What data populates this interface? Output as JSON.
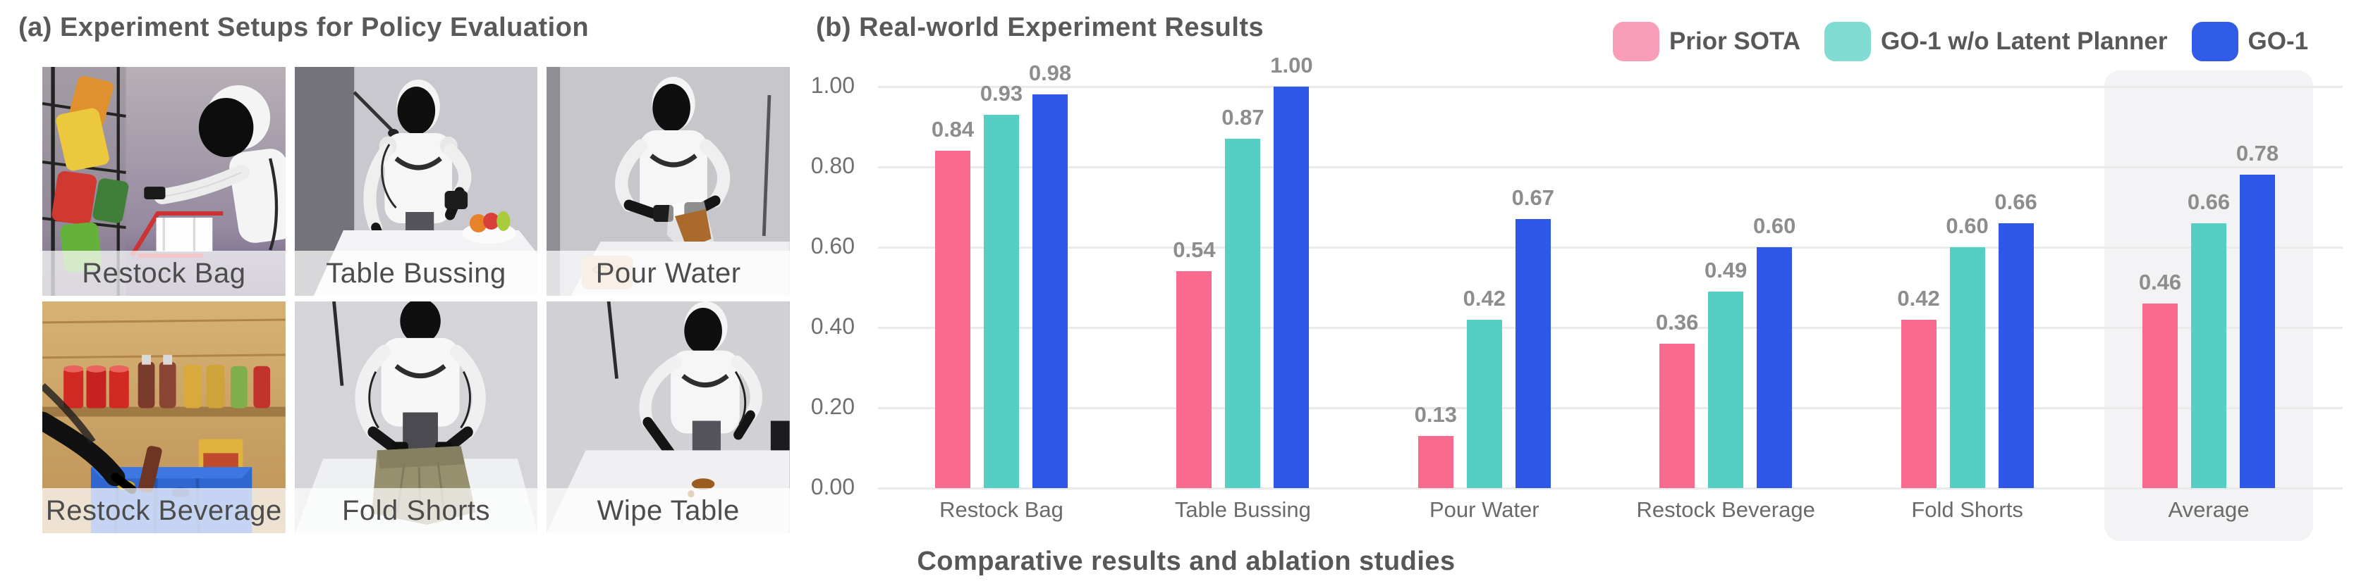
{
  "figure": {
    "panel_a": {
      "title": "(a) Experiment Setups for Policy Evaluation",
      "photos": [
        {
          "label": "Restock Bag"
        },
        {
          "label": "Table Bussing"
        },
        {
          "label": "Pour Water"
        },
        {
          "label": "Restock Beverage"
        },
        {
          "label": "Fold Shorts"
        },
        {
          "label": "Wipe Table"
        }
      ]
    },
    "panel_b": {
      "title": "(b) Real-world Experiment Results",
      "caption": "Comparative results and ablation studies"
    }
  },
  "chart_data": {
    "type": "bar",
    "title": "(b) Real-world Experiment Results",
    "categories": [
      "Restock Bag",
      "Table Bussing",
      "Pour Water",
      "Restock Beverage",
      "Fold Shorts",
      "Average"
    ],
    "series": [
      {
        "name": "Prior SOTA",
        "color": "#FA6A8F",
        "legend_color": "#FA9DB8",
        "values": [
          0.84,
          0.54,
          0.13,
          0.36,
          0.42,
          0.46
        ]
      },
      {
        "name": "GO-1 w/o Latent Planner",
        "color": "#55CEC3",
        "legend_color": "#80DCD3",
        "values": [
          0.93,
          0.87,
          0.42,
          0.49,
          0.6,
          0.66
        ]
      },
      {
        "name": "GO-1",
        "color": "#3058E8",
        "legend_color": "#2F5BE7",
        "values": [
          0.98,
          1.0,
          0.67,
          0.6,
          0.66,
          0.78
        ]
      }
    ],
    "xlabel": "",
    "ylabel": "",
    "ylim": [
      0,
      1.0
    ],
    "yticks": [
      "0.00",
      "0.20",
      "0.40",
      "0.60",
      "0.80",
      "1.00"
    ],
    "grid": true,
    "legend_position": "top-right",
    "value_labels": true,
    "value_format": "0.00",
    "highlight_category": "Average",
    "highlight_color": "#F3F3F5"
  },
  "colors": {
    "title_text": "#58595B",
    "tick_text": "#6F6F6F",
    "value_text": "#8D8D8D",
    "category_text": "#6A6A6A",
    "gridline": "#EAEAEA",
    "photo_label_text": "#4C4C4C"
  }
}
